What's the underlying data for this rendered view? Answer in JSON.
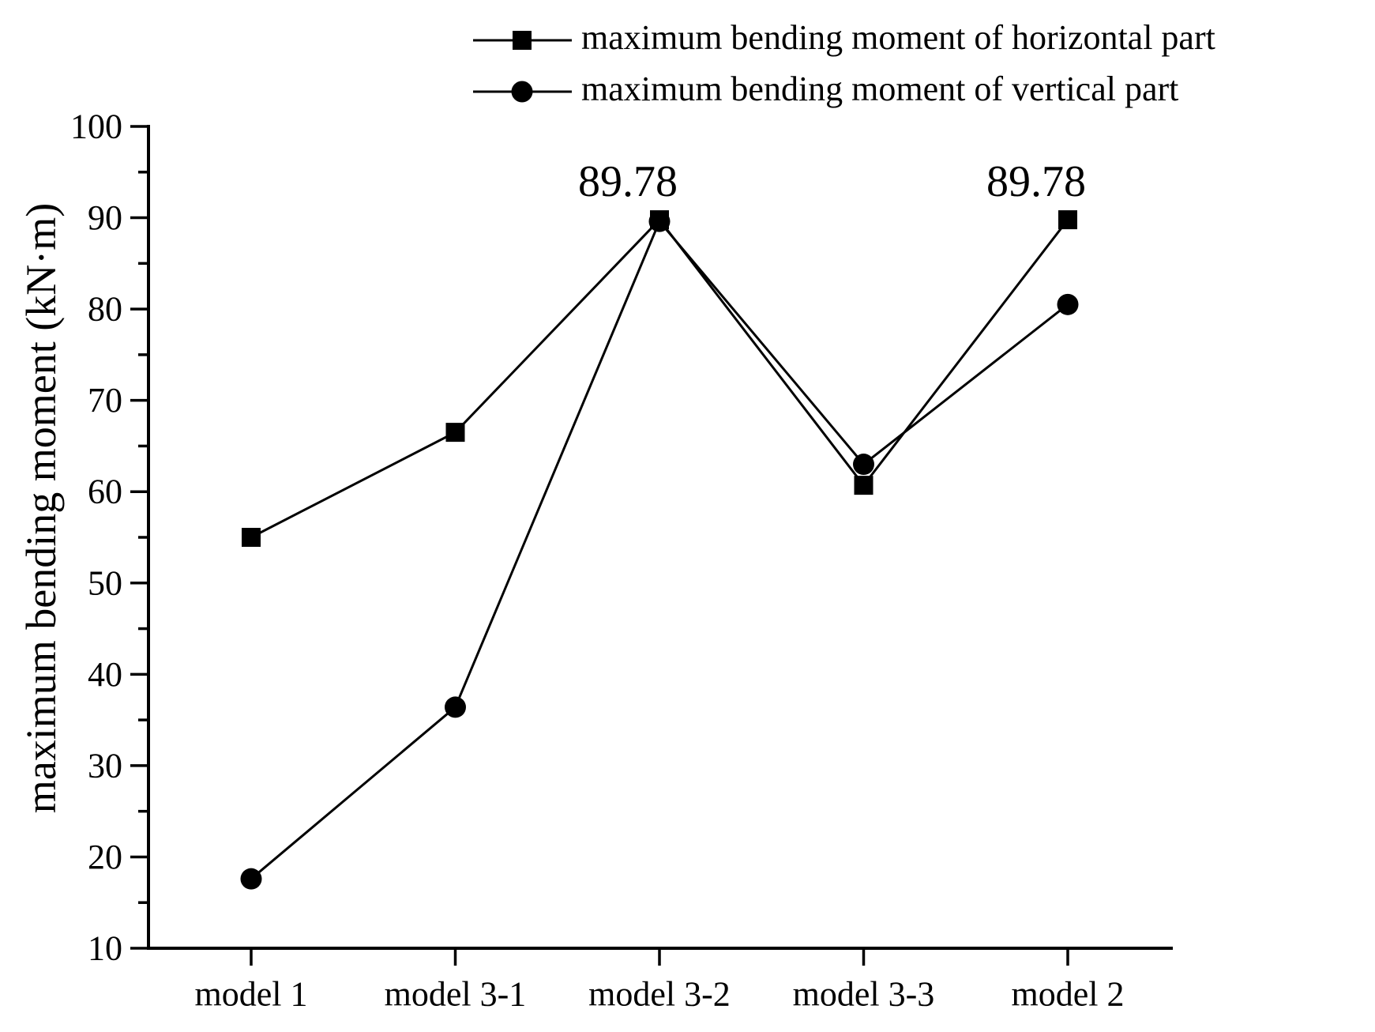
{
  "figure": {
    "background": "#ffffff",
    "ink_color": "#000000"
  },
  "legend": {
    "items": [
      {
        "label": "maximum bending moment of horizontal part",
        "marker": "square"
      },
      {
        "label": "maximum bending moment of vertical part",
        "marker": "circle"
      }
    ]
  },
  "chart_data": {
    "type": "line",
    "title": "",
    "xlabel": "",
    "ylabel": "maximum bending moment (kN·m)",
    "categories": [
      "model 1",
      "model 3-1",
      "model 3-2",
      "model 3-3",
      "model 2"
    ],
    "series": [
      {
        "name": "maximum bending moment of horizontal part",
        "marker": "square",
        "color": "#000000",
        "values": [
          55,
          66.5,
          89.78,
          60.7,
          89.78
        ]
      },
      {
        "name": "maximum bending moment of vertical part",
        "marker": "circle",
        "color": "#000000",
        "values": [
          17.6,
          36.4,
          89.6,
          63,
          80.5
        ]
      }
    ],
    "ylim": [
      10,
      100
    ],
    "yticks": [
      10,
      20,
      30,
      40,
      50,
      60,
      70,
      80,
      90,
      100
    ],
    "minor_ytick_step": 5,
    "grid": false,
    "legend_position": "top",
    "annotations": [
      {
        "text": "89.78",
        "series_index": 0,
        "category_index": 2
      },
      {
        "text": "89.78",
        "series_index": 0,
        "category_index": 4
      }
    ]
  }
}
